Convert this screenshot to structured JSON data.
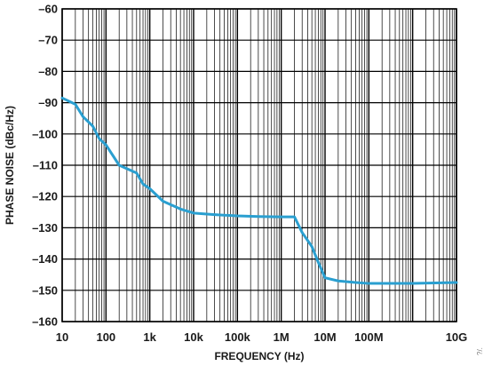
{
  "chart_data": {
    "type": "line",
    "title": "",
    "xlabel": "FREQUENCY (Hz)",
    "ylabel": "PHASE NOISE (dBc/Hz)",
    "x_scale": "log",
    "xlim": [
      10,
      10000000000
    ],
    "ylim": [
      -160,
      -60
    ],
    "grid": true,
    "x_ticks": [
      {
        "value": 10,
        "label": "10"
      },
      {
        "value": 100,
        "label": "100"
      },
      {
        "value": 1000,
        "label": "1k"
      },
      {
        "value": 10000,
        "label": "10k"
      },
      {
        "value": 100000,
        "label": "100k"
      },
      {
        "value": 1000000,
        "label": "1M"
      },
      {
        "value": 10000000,
        "label": "10M"
      },
      {
        "value": 100000000,
        "label": "100M"
      },
      {
        "value": 10000000000,
        "label": "10G"
      }
    ],
    "y_ticks": [
      {
        "value": -60,
        "label": "–60"
      },
      {
        "value": -70,
        "label": "–70"
      },
      {
        "value": -80,
        "label": "–80"
      },
      {
        "value": -90,
        "label": "–90"
      },
      {
        "value": -100,
        "label": "–100"
      },
      {
        "value": -110,
        "label": "–110"
      },
      {
        "value": -120,
        "label": "–120"
      },
      {
        "value": -130,
        "label": "–130"
      },
      {
        "value": -140,
        "label": "–140"
      },
      {
        "value": -150,
        "label": "–150"
      },
      {
        "value": -160,
        "label": "–160"
      }
    ],
    "series": [
      {
        "color": "#2a9fd0",
        "points": [
          [
            10,
            -88.5
          ],
          [
            20,
            -90.5
          ],
          [
            30,
            -94.5
          ],
          [
            50,
            -97.5
          ],
          [
            70,
            -101.5
          ],
          [
            100,
            -103.5
          ],
          [
            200,
            -110
          ],
          [
            500,
            -112.5
          ],
          [
            700,
            -116
          ],
          [
            1000,
            -117.5
          ],
          [
            2000,
            -121.5
          ],
          [
            5000,
            -124
          ],
          [
            10000,
            -125.3
          ],
          [
            30000,
            -125.8
          ],
          [
            100000,
            -126.2
          ],
          [
            300000,
            -126.4
          ],
          [
            1000000,
            -126.5
          ],
          [
            2000000,
            -126.5
          ],
          [
            3000000,
            -131.5
          ],
          [
            5000000,
            -136
          ],
          [
            7000000,
            -141
          ],
          [
            10000000,
            -146
          ],
          [
            20000000,
            -147
          ],
          [
            50000000,
            -147.5
          ],
          [
            100000000,
            -147.8
          ],
          [
            1000000000,
            -147.8
          ],
          [
            10000000000,
            -147.5
          ]
        ]
      }
    ]
  },
  "side_mark": "?/.",
  "colors": {
    "grid": "#000000",
    "line": "#2a9fd0"
  }
}
